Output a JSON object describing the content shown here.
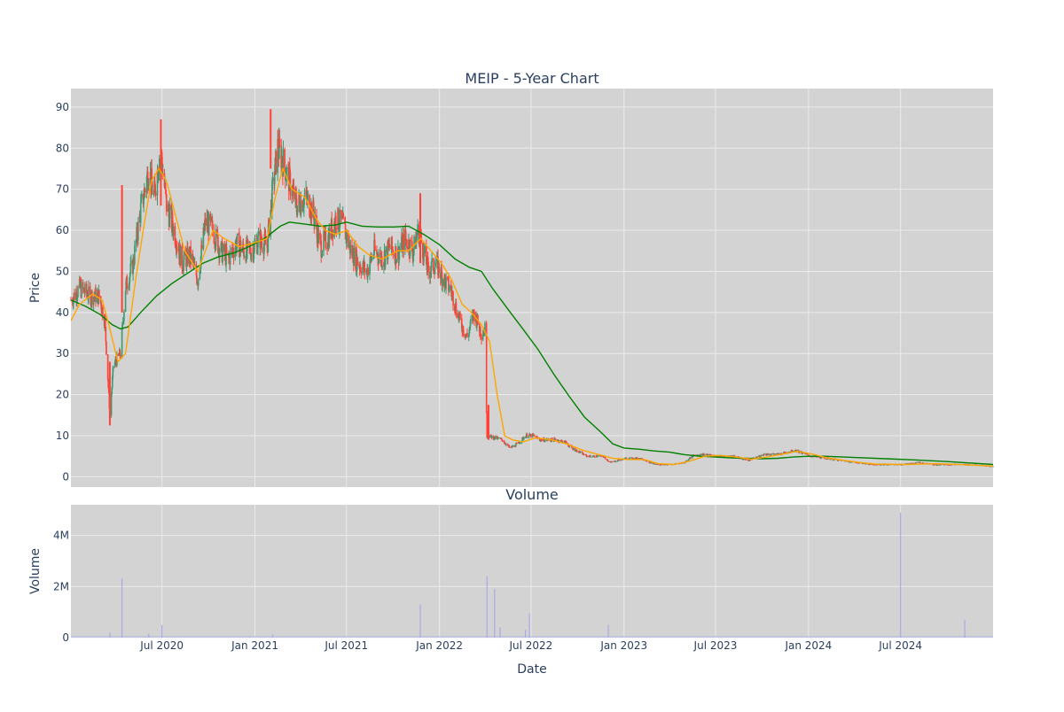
{
  "chart_data": {
    "type": "candlestick",
    "title": "MEIP - 5-Year Chart",
    "colors": {
      "plot_bg": "#d3d3d3",
      "grid": "#ebebeb",
      "up": "#3d9970",
      "down": "#ff4136",
      "ma_short": "#ffa500",
      "ma_long": "#008000",
      "volume": "#a9a9e6",
      "text": "#2a3f5f"
    },
    "xaxis": {
      "title": "Date",
      "range": [
        "2020-01-03",
        "2024-12-31"
      ],
      "ticks": [
        {
          "date": "2020-07-01",
          "label": "Jul 2020"
        },
        {
          "date": "2021-01-01",
          "label": "Jan 2021"
        },
        {
          "date": "2021-07-01",
          "label": "Jul 2021"
        },
        {
          "date": "2022-01-01",
          "label": "Jan 2022"
        },
        {
          "date": "2022-07-01",
          "label": "Jul 2022"
        },
        {
          "date": "2023-01-01",
          "label": "Jan 2023"
        },
        {
          "date": "2023-07-01",
          "label": "Jul 2023"
        },
        {
          "date": "2024-01-01",
          "label": "Jan 2024"
        },
        {
          "date": "2024-07-01",
          "label": "Jul 2024"
        }
      ]
    },
    "price": {
      "ylabel": "Price",
      "ylim": [
        -2.5,
        94.5
      ],
      "yticks": [
        0,
        10,
        20,
        30,
        40,
        50,
        60,
        70,
        80,
        90
      ],
      "close_path": [
        [
          "2020-01-03",
          43
        ],
        [
          "2020-01-20",
          46
        ],
        [
          "2020-02-10",
          44
        ],
        [
          "2020-02-28",
          44
        ],
        [
          "2020-03-10",
          38
        ],
        [
          "2020-03-20",
          15
        ],
        [
          "2020-03-27",
          27
        ],
        [
          "2020-04-10",
          30
        ],
        [
          "2020-04-20",
          46
        ],
        [
          "2020-05-05",
          52
        ],
        [
          "2020-05-20",
          65
        ],
        [
          "2020-06-05",
          75
        ],
        [
          "2020-06-15",
          68
        ],
        [
          "2020-06-28",
          80
        ],
        [
          "2020-07-10",
          66
        ],
        [
          "2020-07-25",
          60
        ],
        [
          "2020-08-10",
          52
        ],
        [
          "2020-08-25",
          54
        ],
        [
          "2020-09-10",
          48
        ],
        [
          "2020-09-25",
          62
        ],
        [
          "2020-10-10",
          60
        ],
        [
          "2020-10-25",
          55
        ],
        [
          "2020-11-10",
          53
        ],
        [
          "2020-11-25",
          57
        ],
        [
          "2020-12-10",
          55
        ],
        [
          "2020-12-25",
          55
        ],
        [
          "2021-01-10",
          58
        ],
        [
          "2021-01-25",
          56
        ],
        [
          "2021-02-05",
          70
        ],
        [
          "2021-02-15",
          80
        ],
        [
          "2021-02-28",
          76
        ],
        [
          "2021-03-10",
          72
        ],
        [
          "2021-03-25",
          66
        ],
        [
          "2021-04-10",
          68
        ],
        [
          "2021-04-25",
          65
        ],
        [
          "2021-05-10",
          56
        ],
        [
          "2021-05-25",
          58
        ],
        [
          "2021-06-10",
          63
        ],
        [
          "2021-06-25",
          61
        ],
        [
          "2021-07-10",
          55
        ],
        [
          "2021-07-25",
          52
        ],
        [
          "2021-08-10",
          50
        ],
        [
          "2021-08-25",
          55
        ],
        [
          "2021-09-10",
          53
        ],
        [
          "2021-09-25",
          56
        ],
        [
          "2021-10-10",
          54
        ],
        [
          "2021-10-25",
          58
        ],
        [
          "2021-11-10",
          55
        ],
        [
          "2021-11-20",
          60
        ],
        [
          "2021-11-30",
          55
        ],
        [
          "2021-12-10",
          50
        ],
        [
          "2021-12-25",
          52
        ],
        [
          "2022-01-10",
          48
        ],
        [
          "2022-01-25",
          45
        ],
        [
          "2022-02-10",
          38
        ],
        [
          "2022-02-25",
          34
        ],
        [
          "2022-03-10",
          40
        ],
        [
          "2022-03-25",
          35
        ],
        [
          "2022-04-01",
          36
        ],
        [
          "2022-04-05",
          10
        ],
        [
          "2022-04-20",
          9.5
        ],
        [
          "2022-05-05",
          9
        ],
        [
          "2022-05-20",
          7
        ],
        [
          "2022-06-05",
          8
        ],
        [
          "2022-06-20",
          10
        ],
        [
          "2022-07-05",
          10
        ],
        [
          "2022-07-20",
          9
        ],
        [
          "2022-08-05",
          9
        ],
        [
          "2022-08-20",
          9
        ],
        [
          "2022-09-05",
          8.5
        ],
        [
          "2022-09-20",
          7
        ],
        [
          "2022-10-05",
          6
        ],
        [
          "2022-10-20",
          5
        ],
        [
          "2022-11-05",
          5
        ],
        [
          "2022-11-20",
          5
        ],
        [
          "2022-12-05",
          3.5
        ],
        [
          "2022-12-20",
          4
        ],
        [
          "2023-01-05",
          4.5
        ],
        [
          "2023-01-20",
          4.5
        ],
        [
          "2023-02-05",
          4.5
        ],
        [
          "2023-02-20",
          3.5
        ],
        [
          "2023-03-05",
          3
        ],
        [
          "2023-04-05",
          3
        ],
        [
          "2023-05-01",
          3.5
        ],
        [
          "2023-05-15",
          5
        ],
        [
          "2023-06-05",
          5.5
        ],
        [
          "2023-07-05",
          5
        ],
        [
          "2023-08-05",
          5
        ],
        [
          "2023-09-05",
          4
        ],
        [
          "2023-10-05",
          5.5
        ],
        [
          "2023-11-05",
          5.5
        ],
        [
          "2023-12-05",
          6.5
        ],
        [
          "2024-01-05",
          5
        ],
        [
          "2024-02-05",
          4.5
        ],
        [
          "2024-03-05",
          4
        ],
        [
          "2024-04-05",
          3.5
        ],
        [
          "2024-05-05",
          3
        ],
        [
          "2024-06-05",
          3
        ],
        [
          "2024-07-05",
          3
        ],
        [
          "2024-08-05",
          3.5
        ],
        [
          "2024-09-05",
          3
        ],
        [
          "2024-10-05",
          3
        ],
        [
          "2024-11-05",
          3
        ],
        [
          "2024-12-05",
          2.8
        ],
        [
          "2024-12-31",
          2.5
        ]
      ],
      "spikes": [
        {
          "date": "2020-04-13",
          "low": 40,
          "high": 71
        },
        {
          "date": "2020-06-29",
          "low": 66,
          "high": 87
        },
        {
          "date": "2021-02-01",
          "low": 75,
          "high": 89.5
        },
        {
          "date": "2021-11-24",
          "low": 52,
          "high": 69
        },
        {
          "date": "2022-04-08",
          "low": 9,
          "high": 17.5
        },
        {
          "date": "2020-03-20",
          "low": 12.5,
          "high": 28
        }
      ],
      "ma_short": [
        [
          "2020-01-03",
          38
        ],
        [
          "2020-01-20",
          42
        ],
        [
          "2020-02-15",
          44.5
        ],
        [
          "2020-03-05",
          43
        ],
        [
          "2020-03-20",
          36
        ],
        [
          "2020-04-05",
          28
        ],
        [
          "2020-04-20",
          30
        ],
        [
          "2020-05-10",
          48
        ],
        [
          "2020-05-25",
          60
        ],
        [
          "2020-06-10",
          72
        ],
        [
          "2020-06-25",
          75
        ],
        [
          "2020-07-10",
          72
        ],
        [
          "2020-07-25",
          65
        ],
        [
          "2020-08-15",
          55
        ],
        [
          "2020-09-10",
          50
        ],
        [
          "2020-09-25",
          55
        ],
        [
          "2020-10-10",
          60
        ],
        [
          "2020-11-01",
          58
        ],
        [
          "2020-12-01",
          56
        ],
        [
          "2021-01-01",
          57
        ],
        [
          "2021-01-25",
          58
        ],
        [
          "2021-02-10",
          68
        ],
        [
          "2021-02-25",
          75
        ],
        [
          "2021-03-15",
          70
        ],
        [
          "2021-04-10",
          68
        ],
        [
          "2021-05-01",
          63
        ],
        [
          "2021-05-20",
          60
        ],
        [
          "2021-06-10",
          59
        ],
        [
          "2021-07-01",
          60
        ],
        [
          "2021-07-25",
          56
        ],
        [
          "2021-08-15",
          54
        ],
        [
          "2021-09-10",
          53
        ],
        [
          "2021-10-10",
          55
        ],
        [
          "2021-11-01",
          55
        ],
        [
          "2021-11-25",
          58
        ],
        [
          "2021-12-15",
          55
        ],
        [
          "2022-01-05",
          52
        ],
        [
          "2022-01-25",
          48
        ],
        [
          "2022-02-15",
          42
        ],
        [
          "2022-03-05",
          40
        ],
        [
          "2022-03-25",
          37
        ],
        [
          "2022-04-10",
          33
        ],
        [
          "2022-04-25",
          20
        ],
        [
          "2022-05-10",
          10
        ],
        [
          "2022-05-25",
          9
        ],
        [
          "2022-06-15",
          8.5
        ],
        [
          "2022-07-10",
          9.5
        ],
        [
          "2022-08-10",
          9
        ],
        [
          "2022-09-10",
          8
        ],
        [
          "2022-10-10",
          6.5
        ],
        [
          "2022-11-10",
          5.5
        ],
        [
          "2022-12-10",
          4.5
        ],
        [
          "2023-01-10",
          4.2
        ],
        [
          "2023-02-10",
          4.2
        ],
        [
          "2023-03-10",
          3.2
        ],
        [
          "2023-04-10",
          3
        ],
        [
          "2023-05-10",
          3.8
        ],
        [
          "2023-06-10",
          5
        ],
        [
          "2023-07-10",
          5.2
        ],
        [
          "2023-08-10",
          4.8
        ],
        [
          "2023-09-10",
          4.3
        ],
        [
          "2023-10-10",
          4.8
        ],
        [
          "2023-11-10",
          5.5
        ],
        [
          "2023-12-10",
          6.2
        ],
        [
          "2024-01-10",
          5.5
        ],
        [
          "2024-02-10",
          4.5
        ],
        [
          "2024-03-10",
          4
        ],
        [
          "2024-04-10",
          3.5
        ],
        [
          "2024-05-10",
          3.1
        ],
        [
          "2024-07-10",
          3
        ],
        [
          "2024-09-10",
          3.2
        ],
        [
          "2024-11-10",
          2.9
        ],
        [
          "2024-12-31",
          2.6
        ]
      ],
      "ma_long": [
        [
          "2020-01-03",
          43
        ],
        [
          "2020-02-01",
          41.5
        ],
        [
          "2020-03-01",
          39.5
        ],
        [
          "2020-03-25",
          37
        ],
        [
          "2020-04-10",
          36
        ],
        [
          "2020-04-25",
          36.5
        ],
        [
          "2020-05-20",
          40
        ],
        [
          "2020-06-20",
          44
        ],
        [
          "2020-07-20",
          47
        ],
        [
          "2020-08-20",
          49.5
        ],
        [
          "2020-09-20",
          52
        ],
        [
          "2020-10-20",
          53.5
        ],
        [
          "2020-11-20",
          54.5
        ],
        [
          "2020-12-20",
          56
        ],
        [
          "2021-01-20",
          58
        ],
        [
          "2021-02-20",
          61
        ],
        [
          "2021-03-10",
          62
        ],
        [
          "2021-04-10",
          61.5
        ],
        [
          "2021-05-10",
          61
        ],
        [
          "2021-06-10",
          61.3
        ],
        [
          "2021-07-01",
          62
        ],
        [
          "2021-08-01",
          61
        ],
        [
          "2021-09-01",
          60.8
        ],
        [
          "2021-10-01",
          60.8
        ],
        [
          "2021-11-01",
          61
        ],
        [
          "2021-12-01",
          59
        ],
        [
          "2022-01-01",
          56.5
        ],
        [
          "2022-02-01",
          53
        ],
        [
          "2022-03-01",
          51
        ],
        [
          "2022-03-25",
          50
        ],
        [
          "2022-04-15",
          46
        ],
        [
          "2022-05-15",
          41
        ],
        [
          "2022-06-15",
          36
        ],
        [
          "2022-07-15",
          31
        ],
        [
          "2022-08-15",
          25
        ],
        [
          "2022-09-15",
          19.5
        ],
        [
          "2022-10-15",
          14.5
        ],
        [
          "2022-11-15",
          11
        ],
        [
          "2022-12-10",
          8
        ],
        [
          "2023-01-01",
          7
        ],
        [
          "2023-02-01",
          6.7
        ],
        [
          "2023-03-01",
          6.3
        ],
        [
          "2023-04-01",
          6
        ],
        [
          "2023-05-01",
          5.4
        ],
        [
          "2023-06-01",
          5
        ],
        [
          "2023-07-01",
          4.8
        ],
        [
          "2023-08-01",
          4.6
        ],
        [
          "2023-09-01",
          4.5
        ],
        [
          "2023-10-01",
          4.4
        ],
        [
          "2023-11-01",
          4.5
        ],
        [
          "2023-12-01",
          4.8
        ],
        [
          "2024-01-01",
          5
        ],
        [
          "2024-02-01",
          5
        ],
        [
          "2024-04-01",
          4.7
        ],
        [
          "2024-06-01",
          4.4
        ],
        [
          "2024-08-01",
          4.1
        ],
        [
          "2024-10-01",
          3.7
        ],
        [
          "2024-12-31",
          3
        ]
      ]
    },
    "volume": {
      "title": "Volume",
      "ylabel": "Volume",
      "ylim": [
        0,
        5200000
      ],
      "yticks": [
        {
          "value": 0,
          "label": "0"
        },
        {
          "value": 2000000,
          "label": "2M"
        },
        {
          "value": 4000000,
          "label": "4M"
        }
      ],
      "spikes": [
        [
          "2020-04-13",
          2300000
        ],
        [
          "2020-07-01",
          500000
        ],
        [
          "2021-11-24",
          1300000
        ],
        [
          "2022-04-05",
          2400000
        ],
        [
          "2022-04-20",
          1900000
        ],
        [
          "2022-05-01",
          400000
        ],
        [
          "2022-06-20",
          300000
        ],
        [
          "2022-06-28",
          950000
        ],
        [
          "2022-12-01",
          500000
        ],
        [
          "2024-07-01",
          4900000
        ],
        [
          "2024-11-05",
          700000
        ],
        [
          "2020-03-20",
          200000
        ],
        [
          "2020-06-05",
          150000
        ],
        [
          "2021-02-05",
          120000
        ]
      ]
    }
  }
}
